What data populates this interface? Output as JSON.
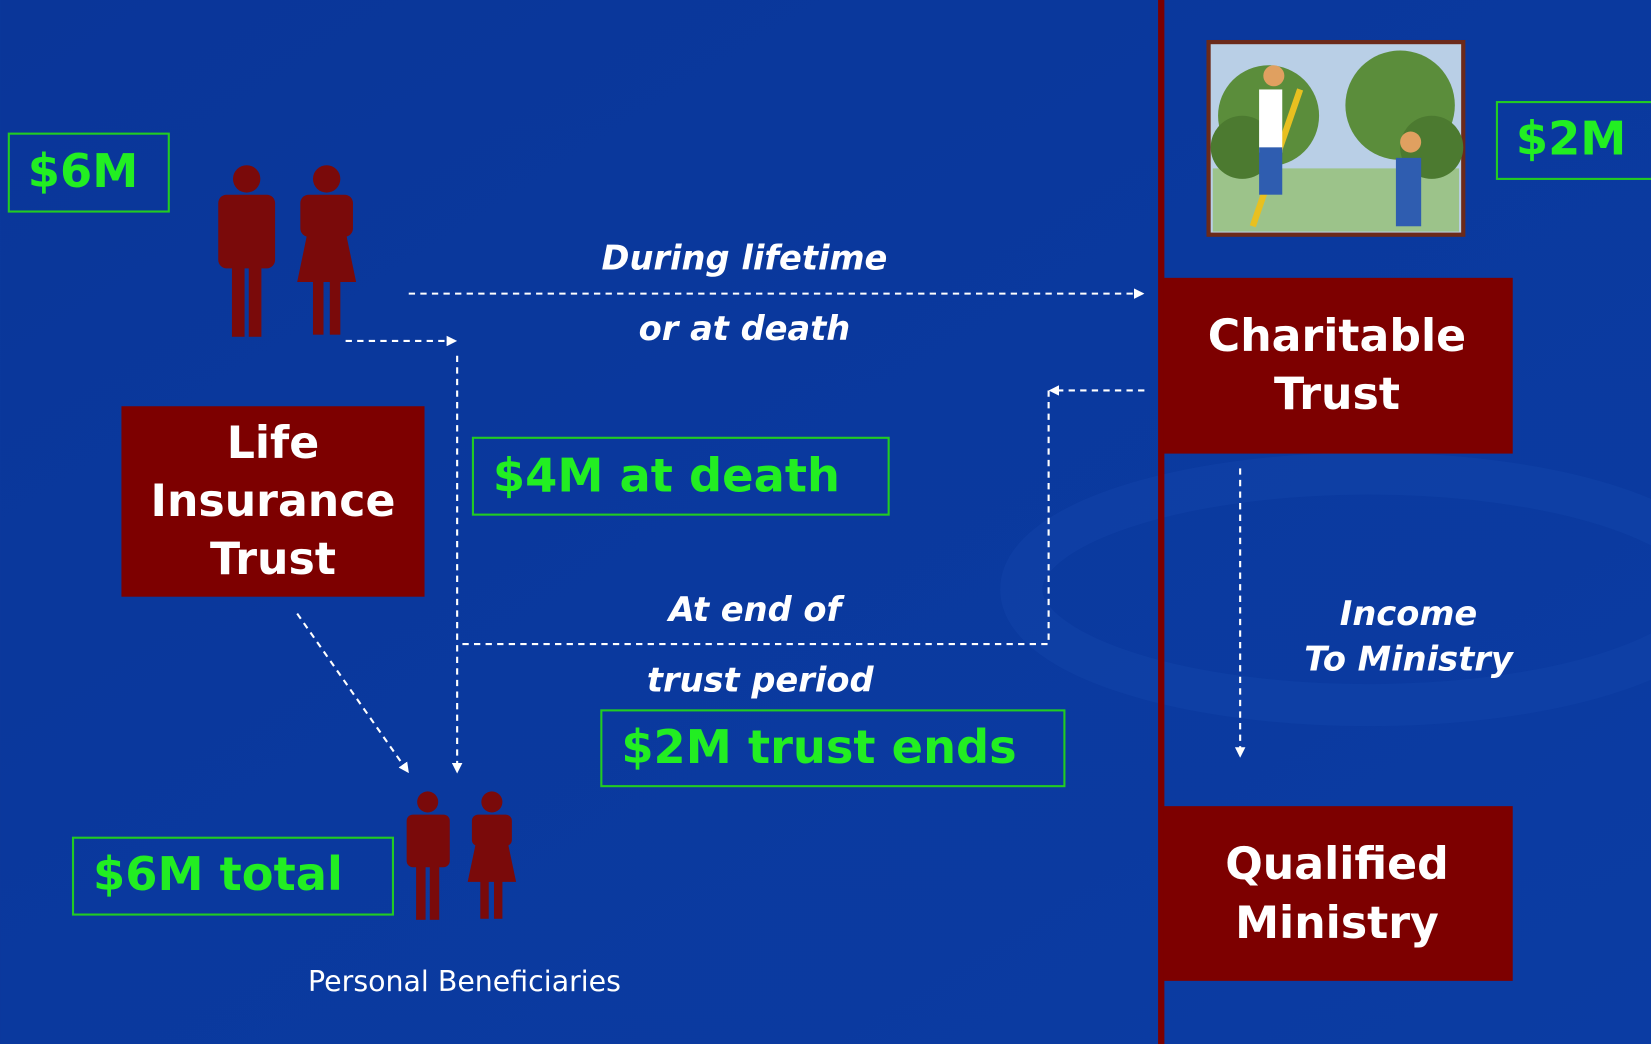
{
  "amounts": {
    "donor_gift": "$6M",
    "charity_gift": "$2M",
    "insurance_at_death": "$4M at death",
    "trust_end": "$2M trust ends",
    "beneficiary_total": "$6M total"
  },
  "boxes": {
    "life_insurance_trust": [
      "Life",
      "Insurance",
      "Trust"
    ],
    "charitable_trust": [
      "Charitable",
      "Trust"
    ],
    "qualified_ministry": [
      "Qualified",
      "Ministry"
    ]
  },
  "flows": {
    "to_charity": [
      "During lifetime",
      "or at death"
    ],
    "trust_end": [
      "At end of",
      "trust period"
    ],
    "income": [
      "Income",
      "To Ministry"
    ]
  },
  "caption": "Personal Beneficiaries"
}
